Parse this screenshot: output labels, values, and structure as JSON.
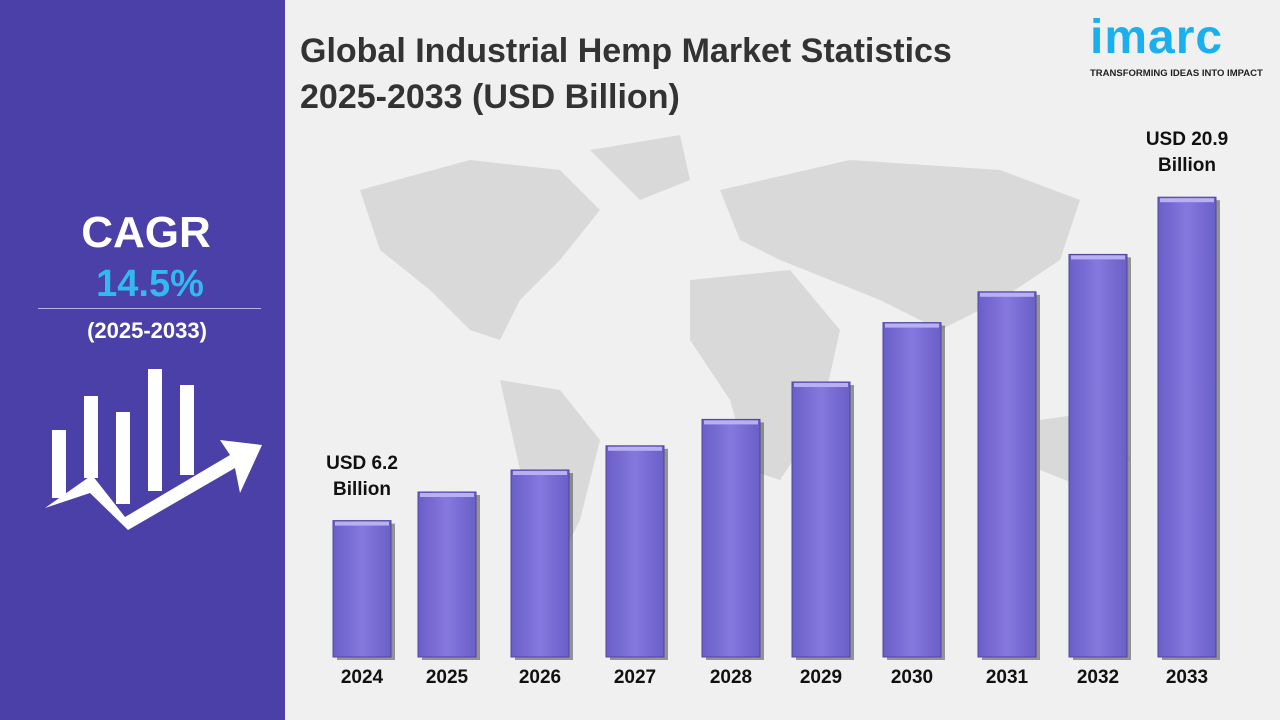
{
  "title_line1": "Global Industrial Hemp Market Statistics",
  "title_line2": "2025-2033 (USD Billion)",
  "logo": {
    "word": "imarc",
    "tagline": "TRANSFORMING IDEAS INTO IMPACT",
    "color": "#1ab0f0"
  },
  "cagr": {
    "label": "CAGR",
    "value": "14.5%",
    "period": "(2025-2033)"
  },
  "colors": {
    "panel": "#4b3fa8",
    "bar": "#7b6fd6",
    "cagr_value": "#33b8f0",
    "background": "#f0f0f0"
  },
  "chart_data": {
    "type": "bar",
    "title": "Global Industrial Hemp Market Statistics 2025-2033 (USD Billion)",
    "categories": [
      "2024",
      "2025",
      "2026",
      "2027",
      "2028",
      "2029",
      "2030",
      "2031",
      "2032",
      "2033"
    ],
    "values": [
      6.2,
      7.5,
      8.5,
      9.6,
      10.8,
      12.5,
      15.2,
      16.6,
      18.3,
      20.9
    ],
    "unit": "USD Billion",
    "annotations": [
      {
        "category": "2024",
        "line1": "USD 6.2",
        "line2": "Billion"
      },
      {
        "category": "2033",
        "line1": "USD 20.9",
        "line2": "Billion"
      }
    ],
    "grid": false,
    "legend": "none"
  }
}
